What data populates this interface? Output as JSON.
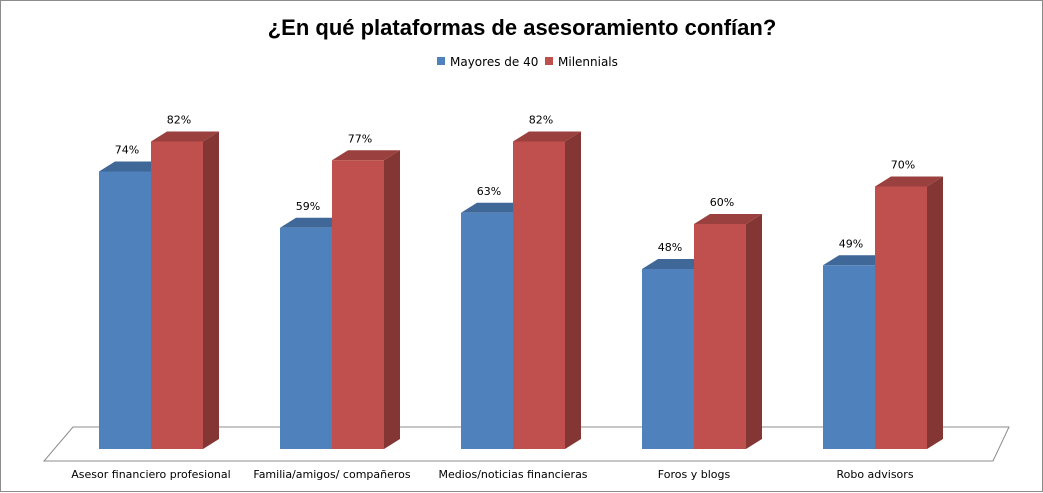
{
  "chart_data": {
    "type": "bar",
    "title": "¿En qué plataformas de asesoramiento confían?",
    "categories": [
      "Asesor financiero profesional",
      "Familia/amigos/ compañeros",
      "Medios/noticias financieras",
      "Foros y blogs",
      "Robo advisors"
    ],
    "series": [
      {
        "name": "Mayores de 40",
        "color": "#4f81bd",
        "values": [
          74,
          59,
          63,
          48,
          49
        ],
        "labels": [
          "74%",
          "59%",
          "63%",
          "48%",
          "49%"
        ]
      },
      {
        "name": "Milennials",
        "color": "#c0504d",
        "values": [
          82,
          77,
          82,
          60,
          70
        ],
        "labels": [
          "82%",
          "77%",
          "82%",
          "60%",
          "70%"
        ]
      }
    ],
    "unit": "%",
    "three_d": true,
    "grid": false,
    "legend_position": "top"
  }
}
